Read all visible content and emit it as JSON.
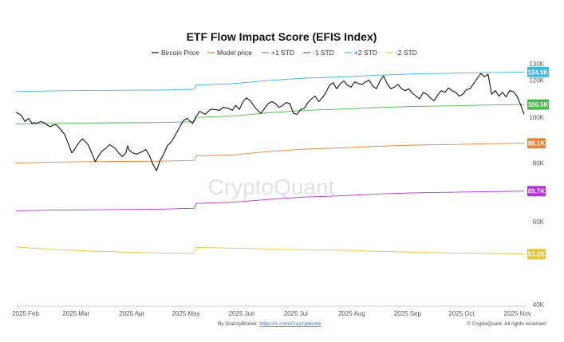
{
  "chart_data": {
    "type": "line",
    "title": "ETF Flow Impact Score (EFIS Index)",
    "watermark": "CryptoQuant",
    "footer_left_prefix": "By CrazzyBlockk: ",
    "footer_left_link": "https://x.com/Crazzyblockk",
    "footer_right": "© CryptoQuant. All rights reserved",
    "x_tick_labels": [
      "2025 Feb",
      "2025 Mar",
      "2025 Apr",
      "2025 May",
      "2025 Jun",
      "2025 Jul",
      "2025 Aug",
      "2025 Sep",
      "2025 Oct",
      "2025 Nov"
    ],
    "y_tick_labels": [
      "130K",
      "120K",
      "100K",
      "80K",
      "60K",
      "40K"
    ],
    "y_tick_values": [
      130000,
      120000,
      100000,
      80000,
      60000,
      40000
    ],
    "y_scale": "log",
    "ylim": [
      40000,
      130000
    ],
    "grid": false,
    "legend_position": "top-center",
    "series": [
      {
        "name": "Bircoin Price",
        "color": "#111111",
        "style": "solid",
        "end_label": "",
        "x": [
          0,
          3,
          5,
          7,
          9,
          10,
          11,
          14,
          15,
          16,
          17,
          19,
          20,
          22,
          23,
          25,
          27,
          29,
          31,
          33,
          35,
          37,
          40,
          42,
          44,
          46,
          48,
          50,
          52,
          55,
          57,
          59,
          61,
          62,
          63,
          65,
          67,
          70,
          72,
          74,
          76,
          78,
          80,
          82,
          84,
          86,
          88,
          90,
          92,
          93,
          95,
          98,
          100,
          102,
          105,
          108,
          110,
          113,
          115,
          118,
          120,
          122,
          124,
          126,
          128,
          130,
          133,
          136,
          138,
          140,
          142,
          144,
          146,
          148,
          150,
          152,
          154,
          156,
          158,
          160,
          162,
          164,
          166,
          168,
          170,
          172,
          174,
          176,
          178,
          180,
          182,
          184,
          186,
          188,
          190,
          192,
          194,
          196,
          198,
          200,
          202,
          204,
          206,
          208,
          210,
          212,
          214,
          216,
          218,
          220,
          222,
          224,
          226,
          228,
          230,
          232,
          234,
          236,
          238,
          240,
          242,
          244,
          246,
          248,
          250,
          252,
          254,
          256,
          258,
          260,
          262,
          264,
          266,
          268,
          270,
          272,
          274,
          276,
          278,
          280,
          282
        ],
        "y": [
          102500,
          101000,
          98000,
          99500,
          97000,
          97500,
          97000,
          98000,
          97500,
          97300,
          96500,
          95500,
          96000,
          96500,
          96000,
          94000,
          92000,
          88000,
          84000,
          86000,
          88500,
          90000,
          87500,
          84000,
          80500,
          83000,
          85000,
          86000,
          87500,
          86000,
          84000,
          82500,
          84000,
          87000,
          85000,
          84000,
          83500,
          84500,
          85500,
          83000,
          79500,
          77000,
          81000,
          83500,
          87000,
          88500,
          91000,
          94000,
          97000,
          98500,
          99500,
          97000,
          100500,
          103000,
          101500,
          104000,
          104000,
          103500,
          105000,
          104500,
          103500,
          106000,
          104000,
          108000,
          110000,
          108500,
          104500,
          102000,
          104500,
          107000,
          108000,
          107000,
          105000,
          106000,
          107500,
          107000,
          102000,
          101500,
          104000,
          104500,
          107500,
          109500,
          111000,
          108000,
          110000,
          113000,
          117000,
          118500,
          115000,
          118000,
          119500,
          117000,
          116000,
          119000,
          118000,
          117500,
          119000,
          120000,
          116500,
          115000,
          119500,
          122500,
          118000,
          115000,
          116000,
          117500,
          115000,
          114000,
          115000,
          112500,
          111000,
          109500,
          113000,
          112000,
          110000,
          108500,
          111500,
          114000,
          113000,
          115500,
          114000,
          113000,
          111000,
          112000,
          114500,
          115000,
          118000,
          121000,
          124000,
          122000,
          123500,
          112000,
          114000,
          111000,
          113000,
          110500,
          114000,
          113500,
          111000,
          106500,
          101500
        ]
      },
      {
        "name": "Model price",
        "color": "#e8823a",
        "style": "solid",
        "end_label": "88.1K",
        "x": [
          0,
          20,
          40,
          60,
          80,
          99,
          100,
          120,
          140,
          160,
          180,
          200,
          220,
          240,
          260,
          282
        ],
        "y": [
          80000,
          80300,
          80500,
          80600,
          80700,
          81000,
          82800,
          83200,
          84600,
          85600,
          86100,
          86800,
          87300,
          87500,
          87900,
          88100
        ]
      },
      {
        "name": "+1 STD",
        "color": "#49b84a",
        "style": "solid",
        "end_label": "106.5K",
        "x": [
          0,
          20,
          40,
          60,
          80,
          99,
          100,
          120,
          140,
          160,
          180,
          200,
          220,
          240,
          260,
          282
        ],
        "y": [
          96800,
          97100,
          97300,
          97400,
          97500,
          97900,
          100000,
          100600,
          102300,
          103500,
          104100,
          104900,
          105500,
          105800,
          106200,
          106500
        ]
      },
      {
        "name": "-1 STD",
        "color": "#b52fd4",
        "style": "solid",
        "end_label": "69.7K",
        "x": [
          0,
          20,
          40,
          60,
          80,
          99,
          100,
          120,
          140,
          160,
          180,
          200,
          220,
          240,
          260,
          282
        ],
        "y": [
          63300,
          63500,
          63600,
          63700,
          63800,
          64100,
          65600,
          66000,
          66900,
          67700,
          68100,
          68700,
          69100,
          69300,
          69500,
          69700
        ]
      },
      {
        "name": "+2 STD",
        "color": "#3fb6e0",
        "style": "solid",
        "end_label": "124.9K",
        "x": [
          0,
          20,
          40,
          60,
          80,
          99,
          100,
          120,
          140,
          160,
          180,
          200,
          220,
          240,
          260,
          282
        ],
        "y": [
          113500,
          113900,
          114100,
          114200,
          114300,
          114800,
          117200,
          117900,
          119800,
          121200,
          121900,
          122900,
          123700,
          124100,
          124500,
          124900
        ]
      },
      {
        "name": "-2 STD",
        "color": "#e9c23e",
        "style": "solid",
        "end_label": "51.2K",
        "x": [
          0,
          20,
          40,
          60,
          80,
          99,
          100,
          120,
          140,
          160,
          180,
          200,
          220,
          240,
          260,
          282
        ],
        "y": [
          53000,
          52400,
          52000,
          51700,
          51500,
          51400,
          52900,
          52700,
          52500,
          52300,
          52200,
          51900,
          51700,
          51500,
          51400,
          51200
        ]
      }
    ],
    "x_unit": "days since 2025 Feb",
    "x_tick_values": [
      0,
      28,
      59,
      89,
      120,
      150,
      181,
      212,
      242,
      273
    ],
    "end_label_colors": [
      "#e8823a",
      "#49b84a",
      "#b52fd4",
      "#3fb6e0",
      "#e9c23e"
    ]
  }
}
